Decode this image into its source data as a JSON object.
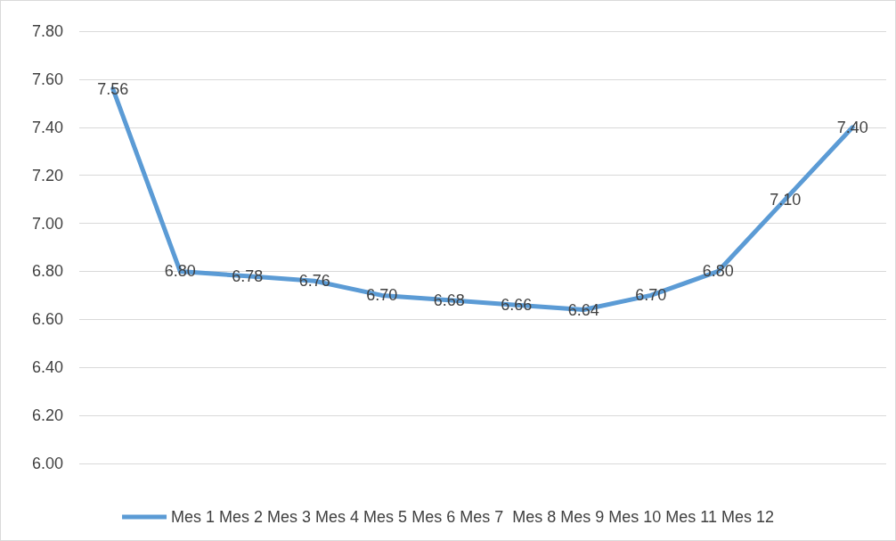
{
  "chart_data": {
    "type": "line",
    "categories": [
      null,
      null,
      null,
      null,
      null,
      null,
      null,
      null,
      null,
      null,
      null,
      null
    ],
    "series": [
      {
        "name": "Mes 1 Mes 2 Mes 3 Mes 4 Mes 5 Mes 6 Mes 7  Mes 8 Mes 9 Mes 10 Mes 11 Mes 12",
        "color": "#5b9bd5",
        "values": [
          7.56,
          6.8,
          6.78,
          6.76,
          6.7,
          6.68,
          6.66,
          6.64,
          6.7,
          6.8,
          7.1,
          7.4
        ],
        "value_labels": [
          "7.56",
          "6.80",
          "6.78",
          "6.76",
          "6.70",
          "6.68",
          "6.66",
          "6.64",
          "6.70",
          "6.80",
          "7.10",
          "7.40"
        ]
      }
    ],
    "ylim": [
      6.0,
      7.8
    ],
    "yticks": [
      {
        "value": 6.0,
        "label": "6.00"
      },
      {
        "value": 6.2,
        "label": "6.20"
      },
      {
        "value": 6.4,
        "label": "6.40"
      },
      {
        "value": 6.6,
        "label": "6.60"
      },
      {
        "value": 6.8,
        "label": "6.80"
      },
      {
        "value": 7.0,
        "label": "7.00"
      },
      {
        "value": 7.2,
        "label": "7.20"
      },
      {
        "value": 7.4,
        "label": "7.40"
      },
      {
        "value": 7.6,
        "label": "7.60"
      },
      {
        "value": 7.8,
        "label": "7.80"
      }
    ],
    "grid": "y",
    "legend": "bottom",
    "marker": "none",
    "line_style": "solid"
  }
}
